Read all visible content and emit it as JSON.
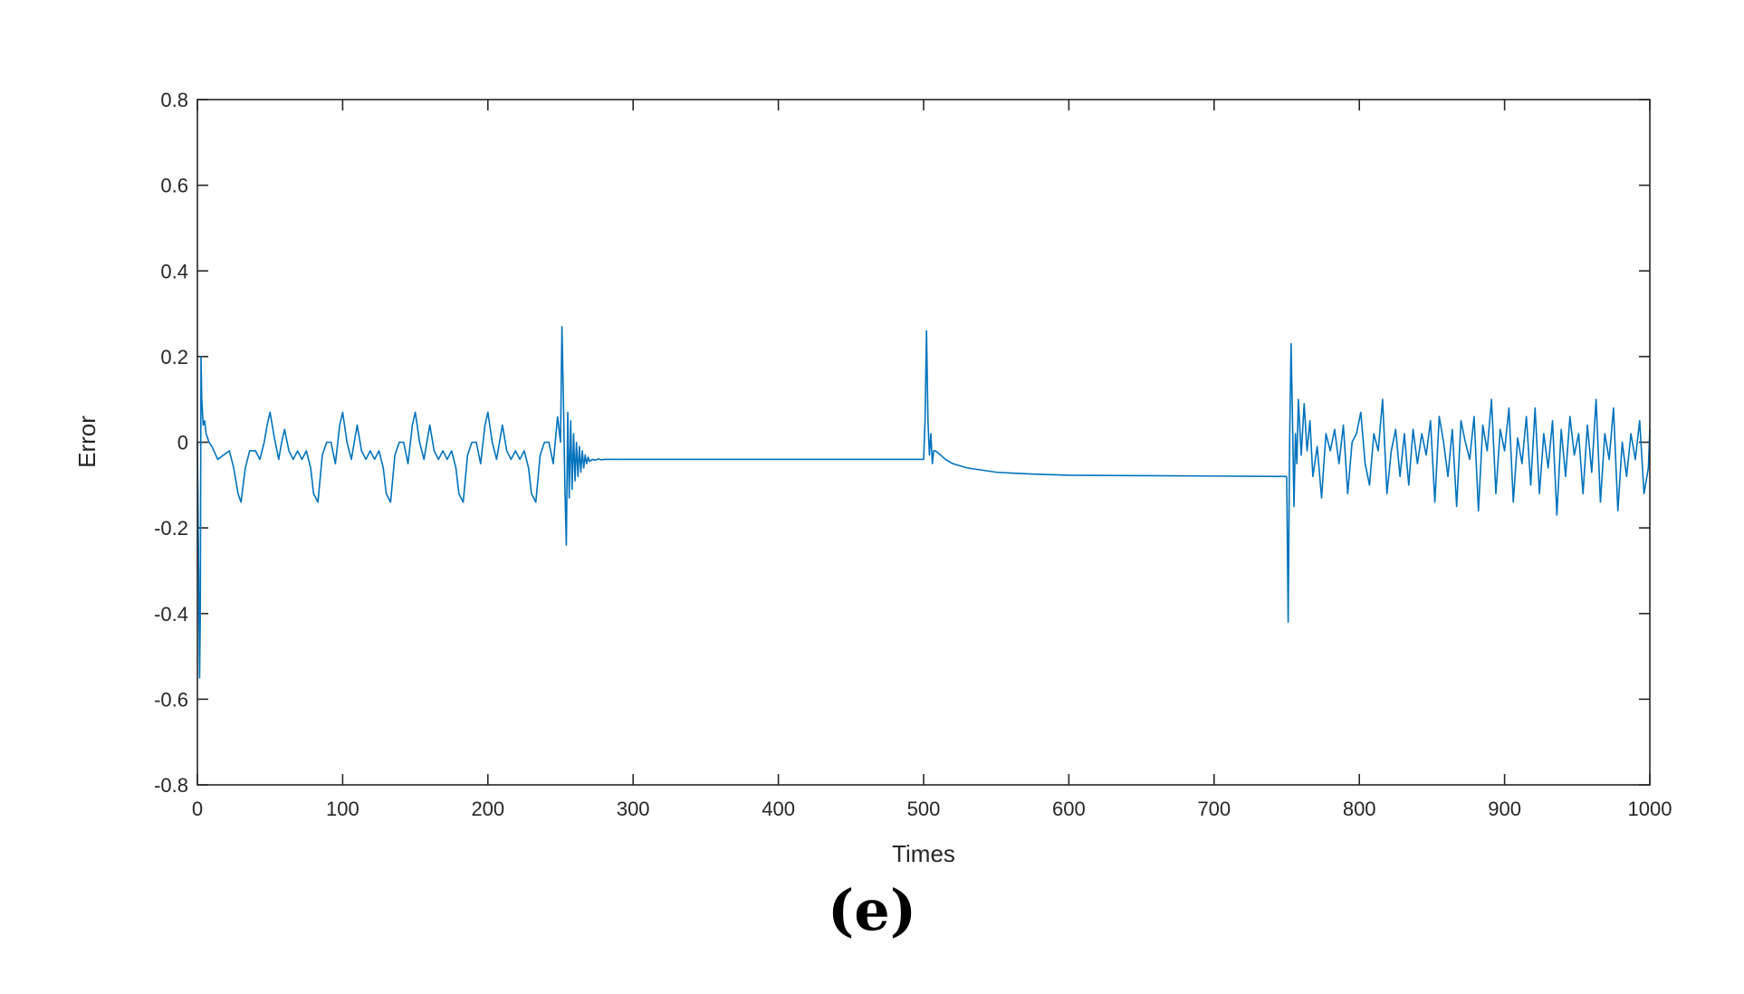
{
  "figure": {
    "panel_label": "(e)"
  },
  "chart_data": {
    "type": "line",
    "title": "",
    "xlabel": "Times",
    "ylabel": "Error",
    "xlim": [
      0,
      1000
    ],
    "ylim": [
      -0.8,
      0.8
    ],
    "xticks": [
      0,
      100,
      200,
      300,
      400,
      500,
      600,
      700,
      800,
      900,
      1000
    ],
    "yticks": [
      -0.8,
      -0.6,
      -0.4,
      -0.2,
      0,
      0.2,
      0.4,
      0.6,
      0.8
    ],
    "grid": false,
    "legend": "none",
    "line_color": "#0072BD",
    "series": [
      {
        "segments": [
          {
            "x": [
              0,
              1,
              1.5,
              2,
              2.5,
              3,
              4,
              5,
              6,
              8,
              10,
              14,
              18,
              22,
              25,
              28,
              30,
              33,
              36,
              40,
              43,
              46,
              48,
              50,
              53,
              56,
              58,
              60,
              63,
              66,
              69,
              72,
              75,
              78,
              80,
              83,
              86,
              89,
              92,
              95,
              98,
              100,
              103,
              106,
              108,
              110,
              113,
              116,
              119,
              122,
              125,
              128,
              130,
              133,
              136,
              139,
              142,
              145,
              148,
              150,
              153,
              156,
              158,
              160,
              163,
              166,
              169,
              172,
              175,
              178,
              180,
              183,
              186,
              189,
              192,
              195,
              198,
              200,
              203,
              206,
              208,
              210,
              213,
              216,
              219,
              222,
              225,
              228,
              230,
              233,
              236,
              239,
              242,
              245,
              248
            ],
            "y": [
              0.0,
              -0.35,
              -0.55,
              -0.4,
              0.2,
              0.1,
              0.04,
              0.05,
              0.02,
              0.0,
              -0.01,
              -0.04,
              -0.03,
              -0.02,
              -0.06,
              -0.12,
              -0.14,
              -0.06,
              -0.02,
              -0.02,
              -0.04,
              0.0,
              0.04,
              0.07,
              0.01,
              -0.04,
              0.0,
              0.03,
              -0.02,
              -0.04,
              -0.02,
              -0.04,
              -0.02,
              -0.06,
              -0.12,
              -0.14,
              -0.03,
              0.0,
              0.0,
              -0.05,
              0.04,
              0.07,
              0.0,
              -0.04,
              0.0,
              0.04,
              -0.02,
              -0.04,
              -0.02,
              -0.04,
              -0.02,
              -0.06,
              -0.12,
              -0.14,
              -0.03,
              0.0,
              0.0,
              -0.05,
              0.04,
              0.07,
              0.0,
              -0.04,
              0.0,
              0.04,
              -0.02,
              -0.04,
              -0.02,
              -0.04,
              -0.02,
              -0.06,
              -0.12,
              -0.14,
              -0.03,
              0.0,
              0.0,
              -0.05,
              0.04,
              0.07,
              0.0,
              -0.04,
              0.0,
              0.04,
              -0.02,
              -0.04,
              -0.02,
              -0.04,
              -0.02,
              -0.06,
              -0.12,
              -0.14,
              -0.03,
              0.0,
              0.0,
              -0.05,
              0.06
            ]
          },
          {
            "x": [
              248,
              250,
              251,
              252,
              253,
              254,
              255,
              256,
              257,
              258,
              259,
              260,
              261,
              262,
              263,
              264,
              265,
              266,
              267,
              268,
              269,
              270,
              272,
              274,
              276,
              278,
              280,
              285,
              290
            ],
            "y": [
              0.06,
              0.0,
              0.27,
              0.1,
              -0.1,
              -0.24,
              0.07,
              -0.13,
              0.05,
              -0.11,
              0.02,
              -0.09,
              0.0,
              -0.08,
              -0.01,
              -0.07,
              -0.02,
              -0.06,
              -0.03,
              -0.05,
              -0.035,
              -0.045,
              -0.04,
              -0.042,
              -0.039,
              -0.041,
              -0.04,
              -0.04,
              -0.04
            ]
          },
          {
            "x": [
              290,
              350,
              400,
              450,
              500,
              501,
              502,
              503,
              504,
              505,
              506,
              507,
              508,
              510,
              515,
              520,
              530,
              540,
              550,
              560,
              580,
              600,
              650,
              700,
              750
            ],
            "y": [
              -0.04,
              -0.04,
              -0.04,
              -0.04,
              -0.04,
              0.05,
              0.26,
              0.05,
              -0.03,
              0.02,
              -0.05,
              -0.02,
              -0.02,
              -0.025,
              -0.04,
              -0.05,
              -0.06,
              -0.065,
              -0.07,
              -0.072,
              -0.075,
              -0.077,
              -0.078,
              -0.079,
              -0.08
            ]
          },
          {
            "x": [
              750,
              751,
              752,
              753,
              754,
              755,
              756,
              757,
              758,
              760,
              762,
              764,
              766,
              768,
              771,
              774,
              777,
              780,
              783,
              786,
              789,
              792,
              795,
              798,
              801,
              804,
              807,
              810,
              813,
              816,
              819,
              822,
              825,
              828,
              831,
              834,
              837,
              840,
              843,
              846,
              849,
              852,
              855,
              858,
              861,
              864,
              867,
              870,
              873,
              876,
              879,
              882,
              885,
              888,
              891,
              894,
              897,
              900,
              903,
              906,
              909,
              912,
              915,
              918,
              921,
              924,
              927,
              930,
              933,
              936,
              939,
              942,
              945,
              948,
              951,
              954,
              957,
              960,
              963,
              966,
              969,
              972,
              975,
              978,
              981,
              984,
              987,
              990,
              993,
              996,
              999,
              1000
            ],
            "y": [
              -0.08,
              -0.42,
              0.0,
              0.23,
              0.05,
              -0.15,
              0.02,
              -0.05,
              0.1,
              -0.03,
              0.09,
              -0.02,
              0.05,
              -0.08,
              -0.01,
              -0.13,
              0.02,
              -0.02,
              0.03,
              -0.05,
              0.04,
              -0.12,
              0.0,
              0.02,
              0.07,
              -0.05,
              -0.1,
              0.02,
              -0.02,
              0.1,
              -0.12,
              -0.02,
              0.03,
              -0.08,
              0.02,
              -0.1,
              0.03,
              -0.05,
              0.02,
              -0.03,
              0.05,
              -0.14,
              0.06,
              0.0,
              -0.08,
              0.03,
              -0.15,
              0.05,
              0.0,
              -0.04,
              0.06,
              -0.16,
              0.04,
              -0.02,
              0.1,
              -0.12,
              0.03,
              -0.02,
              0.08,
              -0.14,
              0.01,
              -0.05,
              0.06,
              -0.1,
              0.08,
              -0.12,
              0.02,
              -0.06,
              0.05,
              -0.17,
              0.03,
              -0.08,
              0.06,
              -0.03,
              0.02,
              -0.12,
              0.04,
              -0.07,
              0.1,
              -0.14,
              0.02,
              -0.04,
              0.08,
              -0.16,
              0.0,
              -0.08,
              0.02,
              -0.04,
              0.05,
              -0.12,
              -0.06,
              0.03
            ]
          }
        ]
      }
    ]
  }
}
